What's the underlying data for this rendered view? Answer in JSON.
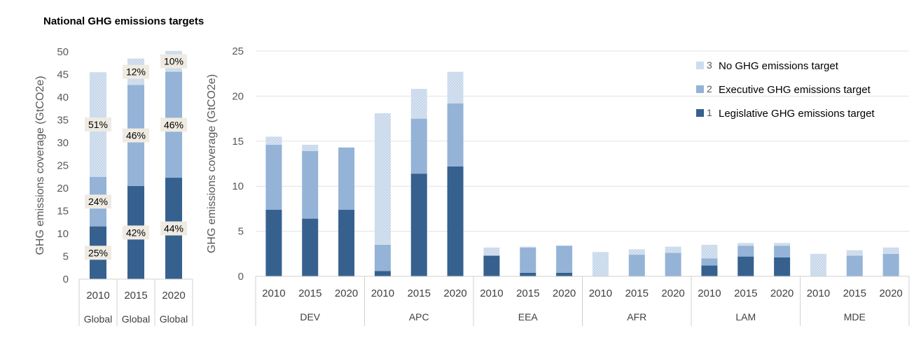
{
  "title": "National GHG emissions targets",
  "colors": {
    "legislative": "#36618f",
    "executive": "#94b3d7",
    "none": "#c5d6ea",
    "none_dot": "#e8eff7",
    "label_box": "#efebe2",
    "grid": "#e3e3e3",
    "axis": "#d0d0d0"
  },
  "chart_data": [
    {
      "type": "bar",
      "stacked": true,
      "ylabel": "GHG emissions coverage (GtCO2e)",
      "ylim": [
        0,
        50
      ],
      "yticks": [
        0,
        5,
        10,
        15,
        20,
        25,
        30,
        35,
        40,
        45,
        50
      ],
      "categories": [
        "2010",
        "2015",
        "2020"
      ],
      "groups": [
        "Global",
        "Global",
        "Global"
      ],
      "series": [
        {
          "name": "Legislative GHG emissions target",
          "values": [
            11.6,
            20.5,
            22.3
          ]
        },
        {
          "name": "Executive GHG emissions target",
          "values": [
            10.9,
            22.2,
            23.3
          ]
        },
        {
          "name": "No GHG emissions target",
          "values": [
            23.0,
            5.8,
            4.6
          ]
        }
      ],
      "data_labels": [
        {
          "category": "2010",
          "series": "Legislative GHG emissions target",
          "text": "25%"
        },
        {
          "category": "2010",
          "series": "Executive GHG emissions target",
          "text": "24%"
        },
        {
          "category": "2010",
          "series": "No GHG emissions target",
          "text": "51%"
        },
        {
          "category": "2015",
          "series": "Legislative GHG emissions target",
          "text": "42%"
        },
        {
          "category": "2015",
          "series": "Executive GHG emissions target",
          "text": "46%"
        },
        {
          "category": "2015",
          "series": "No GHG emissions target",
          "text": "12%"
        },
        {
          "category": "2020",
          "series": "Legislative GHG emissions target",
          "text": "44%"
        },
        {
          "category": "2020",
          "series": "Executive GHG emissions target",
          "text": "46%"
        },
        {
          "category": "2020",
          "series": "No GHG emissions target",
          "text": "10%"
        }
      ]
    },
    {
      "type": "bar",
      "stacked": true,
      "ylabel": "GHG emissions coverage (GtCO2e)",
      "ylim": [
        0,
        25
      ],
      "yticks": [
        0,
        5,
        10,
        15,
        20,
        25
      ],
      "groups": [
        "DEV",
        "APC",
        "EEA",
        "AFR",
        "LAM",
        "MDE"
      ],
      "years": [
        "2010",
        "2015",
        "2020"
      ],
      "legend": {
        "position": "top-right",
        "entries": [
          {
            "number": "3",
            "name": "No GHG emissions target"
          },
          {
            "number": "2",
            "name": "Executive GHG emissions target"
          },
          {
            "number": "1",
            "name": "Legislative GHG emissions target"
          }
        ]
      },
      "series": [
        {
          "name": "Legislative GHG emissions target",
          "values": [
            7.4,
            6.4,
            7.4,
            0.6,
            11.4,
            12.2,
            2.3,
            0.4,
            0.4,
            0,
            0,
            0,
            1.2,
            2.2,
            2.1,
            0,
            0,
            0
          ]
        },
        {
          "name": "Executive GHG emissions target",
          "values": [
            7.2,
            7.5,
            6.9,
            2.9,
            6.1,
            7.0,
            0,
            2.8,
            3.0,
            0,
            2.4,
            2.6,
            0.8,
            1.2,
            1.3,
            0,
            2.3,
            2.5
          ]
        },
        {
          "name": "No GHG emissions target",
          "values": [
            0.9,
            0.7,
            0,
            14.6,
            3.3,
            3.5,
            0.9,
            0.1,
            0,
            2.7,
            0.6,
            0.7,
            1.5,
            0.3,
            0.3,
            2.5,
            0.6,
            0.7
          ]
        }
      ]
    }
  ]
}
